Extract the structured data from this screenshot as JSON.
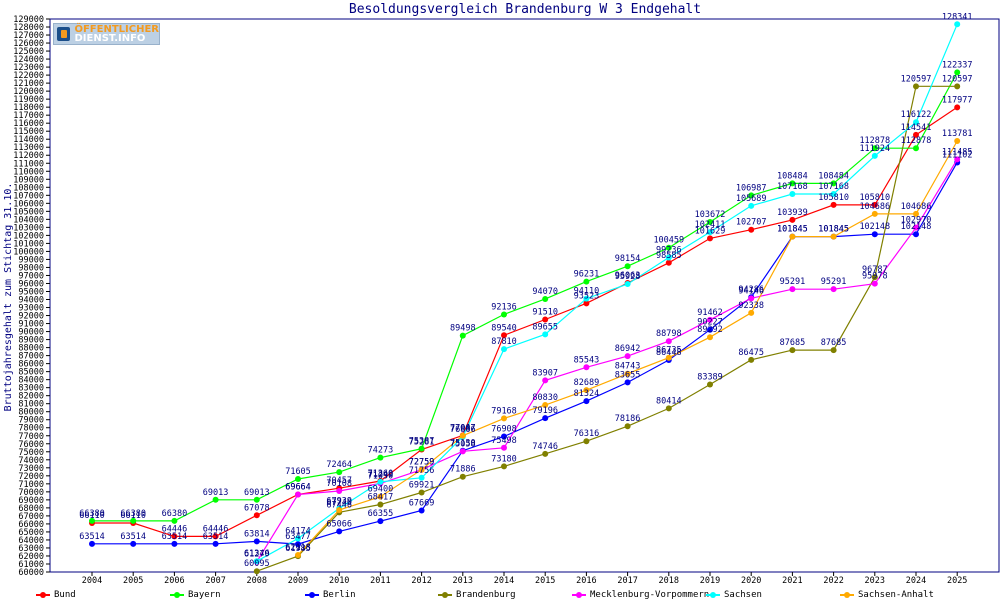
{
  "chart_data": {
    "type": "line",
    "title": "Besoldungsvergleich Brandenburg W 3 Endgehalt",
    "ylabel": "Bruttojahresgehalt zum Stichtag 31.10.",
    "xlabel": "",
    "ylim": [
      60000,
      129000
    ],
    "ytick_step": 1000,
    "grid": false,
    "legend_position": "bottom",
    "categories": [
      "2004",
      "2005",
      "2006",
      "2007",
      "2008",
      "2009",
      "2010",
      "2011",
      "2012",
      "2013",
      "2014",
      "2015",
      "2016",
      "2017",
      "2018",
      "2019",
      "2020",
      "2021",
      "2022",
      "2023",
      "2024",
      "2025"
    ],
    "series": [
      {
        "name": "Bund",
        "color": "#ff0000",
        "values": [
          66110,
          66110,
          64446,
          64446,
          67078,
          69664,
          70457,
          71360,
          75281,
          77047,
          89540,
          91510,
          93523,
          96063,
          98585,
          101629,
          102707,
          103939,
          105810,
          105810,
          114541,
          117977
        ]
      },
      {
        "name": "Bayern",
        "color": "#00ff00",
        "values": [
          66380,
          66380,
          66380,
          69013,
          69013,
          71605,
          72464,
          74273,
          75387,
          89498,
          92136,
          94070,
          96231,
          98154,
          100459,
          103672,
          106987,
          108484,
          108484,
          112878,
          112878,
          122337
        ]
      },
      {
        "name": "Berlin",
        "color": "#0000ff",
        "values": [
          63514,
          63514,
          63514,
          63514,
          63814,
          63477,
          65066,
          66355,
          67669,
          75130,
          76908,
          79196,
          81324,
          83655,
          86448,
          90227,
          94286,
          101845,
          101845,
          102148,
          102148,
          111102
        ]
      },
      {
        "name": "Brandenburg",
        "color": "#808000",
        "values": [
          null,
          null,
          null,
          null,
          60095,
          61985,
          67446,
          68417,
          69921,
          71886,
          73180,
          74746,
          76316,
          78186,
          80414,
          83389,
          86475,
          87685,
          87685,
          96787,
          120597,
          120597
        ]
      },
      {
        "name": "Mecklenburg-Vorpommern",
        "color": "#ff00ff",
        "values": [
          null,
          null,
          null,
          null,
          61279,
          69664,
          70108,
          71050,
          72759,
          75058,
          75498,
          83907,
          85543,
          86942,
          88798,
          91462,
          94146,
          95291,
          95291,
          95978,
          102970,
          111485
        ]
      },
      {
        "name": "Sachsen",
        "color": "#00ffff",
        "values": [
          null,
          null,
          null,
          null,
          61346,
          64174,
          67939,
          71249,
          71756,
          76866,
          87810,
          89655,
          94110,
          95928,
          99236,
          102411,
          105689,
          107168,
          107168,
          111924,
          116122,
          128341
        ]
      },
      {
        "name": "Sachsen-Anhalt",
        "color": "#ffaa00",
        "values": [
          null,
          null,
          null,
          null,
          null,
          62118,
          67740,
          69400,
          72759,
          77007,
          79168,
          80830,
          82689,
          84743,
          86735,
          89292,
          92338,
          101845,
          101845,
          104686,
          104686,
          113781
        ]
      }
    ]
  },
  "logo": {
    "line1": "ÖFFENTLICHER",
    "line2": "DIENST.INFO"
  },
  "colors": {
    "plot_border": "#000080",
    "axis_text": "#000000",
    "label_text": "#000080"
  }
}
